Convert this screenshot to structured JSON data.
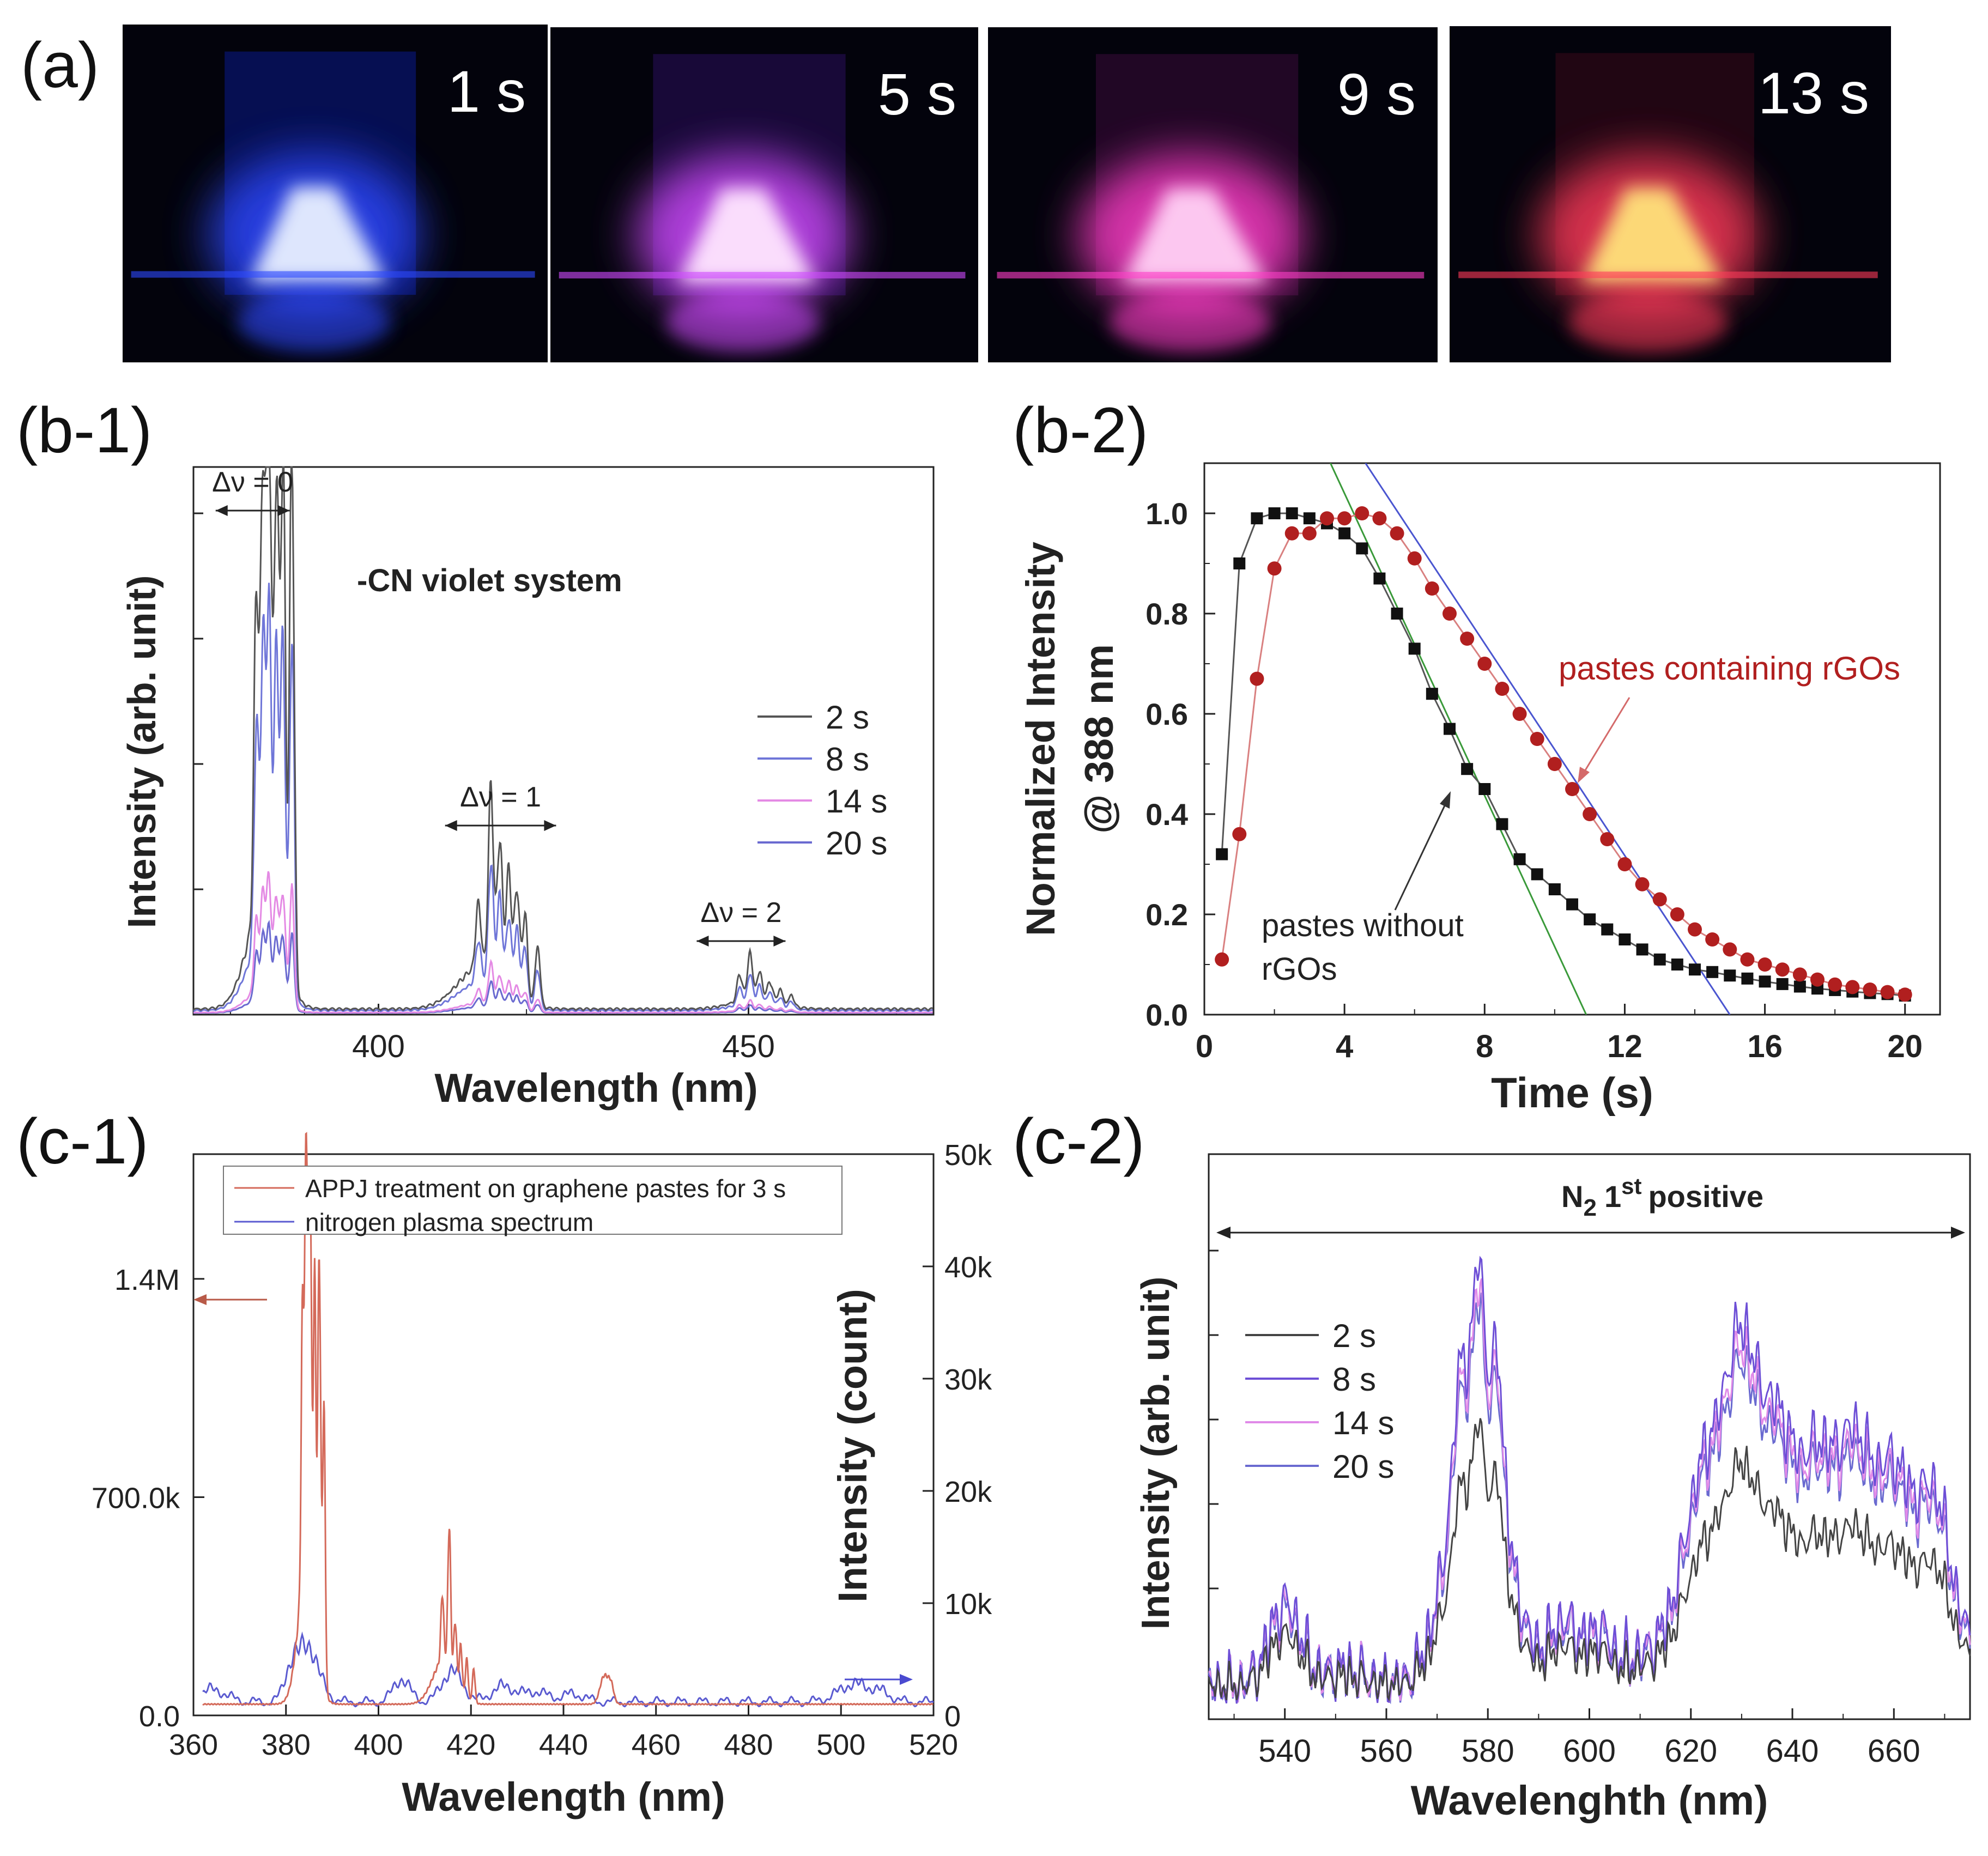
{
  "panels": {
    "a": "(a)",
    "b1": "(b-1)",
    "b2": "(b-2)",
    "c1": "(c-1)",
    "c2": "(c-2)"
  },
  "photos": [
    {
      "time_label": "1 s",
      "glow": "#e8f0ff",
      "halo": "#2d49ff",
      "tint": "#0a1a8c"
    },
    {
      "time_label": "5 s",
      "glow": "#ffe6ff",
      "halo": "#d14bff",
      "tint": "#2a0f5c"
    },
    {
      "time_label": "9 s",
      "glow": "#ffd0f4",
      "halo": "#ff3dc8",
      "tint": "#3a0b3a"
    },
    {
      "time_label": "13 s",
      "glow": "#ffe27a",
      "halo": "#ff3a5a",
      "tint": "#3a0a1a"
    }
  ],
  "chart_data": [
    {
      "id": "b1",
      "type": "line",
      "title": "",
      "xlabel": "Wavelength (nm)",
      "ylabel": "Intensity (arb. unit)",
      "xlim": [
        375,
        475
      ],
      "ylim": [
        0,
        1.0
      ],
      "xticks": [
        400,
        450
      ],
      "annotation_text": "-CN violet system",
      "bands": [
        {
          "label": "Δν = 0",
          "from": 378,
          "to": 388
        },
        {
          "label": "Δν = 1",
          "from": 409,
          "to": 424
        },
        {
          "label": "Δν = 2",
          "from": 443,
          "to": 455
        }
      ],
      "series": [
        {
          "name": "2 s",
          "color": "#555555",
          "scale": 1.0
        },
        {
          "name": "8 s",
          "color": "#6f76d8",
          "scale": 0.67
        },
        {
          "name": "14 s",
          "color": "#e48ae4",
          "scale": 0.22
        },
        {
          "name": "20 s",
          "color": "#6a6ad0",
          "scale": 0.14
        }
      ]
    },
    {
      "id": "b2",
      "type": "scatter",
      "xlabel": "Time (s)",
      "ylabel_line1": "Normalized Intensity",
      "ylabel_line2": "@ 388 nm",
      "xlim": [
        0,
        21
      ],
      "ylim": [
        0,
        1.1
      ],
      "xticks": [
        0,
        4,
        8,
        12,
        16,
        20
      ],
      "yticks": [
        "0.0",
        "0.2",
        "0.4",
        "0.6",
        "0.8",
        "1.0"
      ],
      "annotation_red": "pastes containing rGOs",
      "annotation_black_1": "pastes without",
      "annotation_black_2": "rGOs",
      "series": [
        {
          "name": "pastes without rGOs",
          "color": "#111111",
          "marker": "square",
          "x": [
            0.5,
            1,
            1.5,
            2,
            2.5,
            3,
            3.5,
            4,
            4.5,
            5,
            5.5,
            6,
            6.5,
            7,
            7.5,
            8,
            8.5,
            9,
            9.5,
            10,
            10.5,
            11,
            11.5,
            12,
            12.5,
            13,
            13.5,
            14,
            14.5,
            15,
            15.5,
            16,
            16.5,
            17,
            17.5,
            18,
            18.5,
            19,
            19.5,
            20
          ],
          "y": [
            0.32,
            0.9,
            0.99,
            1.0,
            1.0,
            0.99,
            0.98,
            0.96,
            0.93,
            0.87,
            0.8,
            0.73,
            0.64,
            0.57,
            0.49,
            0.45,
            0.38,
            0.31,
            0.28,
            0.25,
            0.22,
            0.19,
            0.17,
            0.15,
            0.13,
            0.11,
            0.1,
            0.09,
            0.085,
            0.078,
            0.072,
            0.066,
            0.061,
            0.056,
            0.052,
            0.049,
            0.046,
            0.043,
            0.041,
            0.038
          ]
        },
        {
          "name": "pastes containing rGOs",
          "color": "#b11f1f",
          "marker": "circle",
          "x": [
            0.5,
            1,
            1.5,
            2,
            2.5,
            3,
            3.5,
            4,
            4.5,
            5,
            5.5,
            6,
            6.5,
            7,
            7.5,
            8,
            8.5,
            9,
            9.5,
            10,
            10.5,
            11,
            11.5,
            12,
            12.5,
            13,
            13.5,
            14,
            14.5,
            15,
            15.5,
            16,
            16.5,
            17,
            17.5,
            18,
            18.5,
            19,
            19.5,
            20
          ],
          "y": [
            0.11,
            0.36,
            0.67,
            0.89,
            0.96,
            0.96,
            0.99,
            0.99,
            1.0,
            0.99,
            0.96,
            0.91,
            0.85,
            0.8,
            0.75,
            0.7,
            0.65,
            0.6,
            0.55,
            0.5,
            0.45,
            0.4,
            0.35,
            0.3,
            0.26,
            0.23,
            0.2,
            0.17,
            0.15,
            0.13,
            0.11,
            0.1,
            0.09,
            0.08,
            0.07,
            0.06,
            0.055,
            0.05,
            0.045,
            0.04
          ]
        }
      ],
      "fit_lines": [
        {
          "color": "#3a9a3a",
          "x": [
            3.6,
            10.9
          ],
          "y": [
            1.1,
            0.0
          ]
        },
        {
          "color": "#4a55d0",
          "x": [
            4.6,
            15.0
          ],
          "y": [
            1.1,
            0.0
          ]
        }
      ]
    },
    {
      "id": "c1",
      "type": "line",
      "xlabel": "Wavelength (nm)",
      "ylabel_right": "Intensity (count)",
      "xlim": [
        360,
        520
      ],
      "xticks": [
        360,
        380,
        400,
        420,
        440,
        460,
        480,
        500,
        520
      ],
      "ylim_left": [
        0,
        1800000
      ],
      "yticks_left": [
        {
          "v": 0,
          "t": "0.0"
        },
        {
          "v": 700000,
          "t": "700.0k"
        },
        {
          "v": 1400000,
          "t": "1.4M"
        }
      ],
      "ylim_right": [
        0,
        50000
      ],
      "yticks_right": [
        {
          "v": 0,
          "t": "0"
        },
        {
          "v": 10000,
          "t": "10k"
        },
        {
          "v": 20000,
          "t": "20k"
        },
        {
          "v": 30000,
          "t": "30k"
        },
        {
          "v": 40000,
          "t": "40k"
        },
        {
          "v": 50000,
          "t": "50k"
        }
      ],
      "series": [
        {
          "name": "APPJ treatment on graphene pastes for 3 s",
          "color": "#d46a5a",
          "axis": "left"
        },
        {
          "name": "nitrogen plasma spectrum",
          "color": "#5a5ad0",
          "axis": "right"
        }
      ]
    },
    {
      "id": "c2",
      "type": "line",
      "xlabel": "Wavelenghth (nm)",
      "ylabel": "Intensity (arb. unit)",
      "xlim": [
        525,
        675
      ],
      "xticks": [
        540,
        560,
        580,
        600,
        620,
        640,
        660
      ],
      "title_main": "N",
      "title_sub": "2",
      "title_num": "1",
      "title_sup": "st",
      "title_rest": "positive",
      "series": [
        {
          "name": "2 s",
          "color": "#444444",
          "scale": 0.62
        },
        {
          "name": "8 s",
          "color": "#6d4fd6",
          "scale": 1.0
        },
        {
          "name": "14 s",
          "color": "#e08ae8",
          "scale": 0.94
        },
        {
          "name": "20 s",
          "color": "#6a6ad0",
          "scale": 0.9
        }
      ]
    }
  ]
}
